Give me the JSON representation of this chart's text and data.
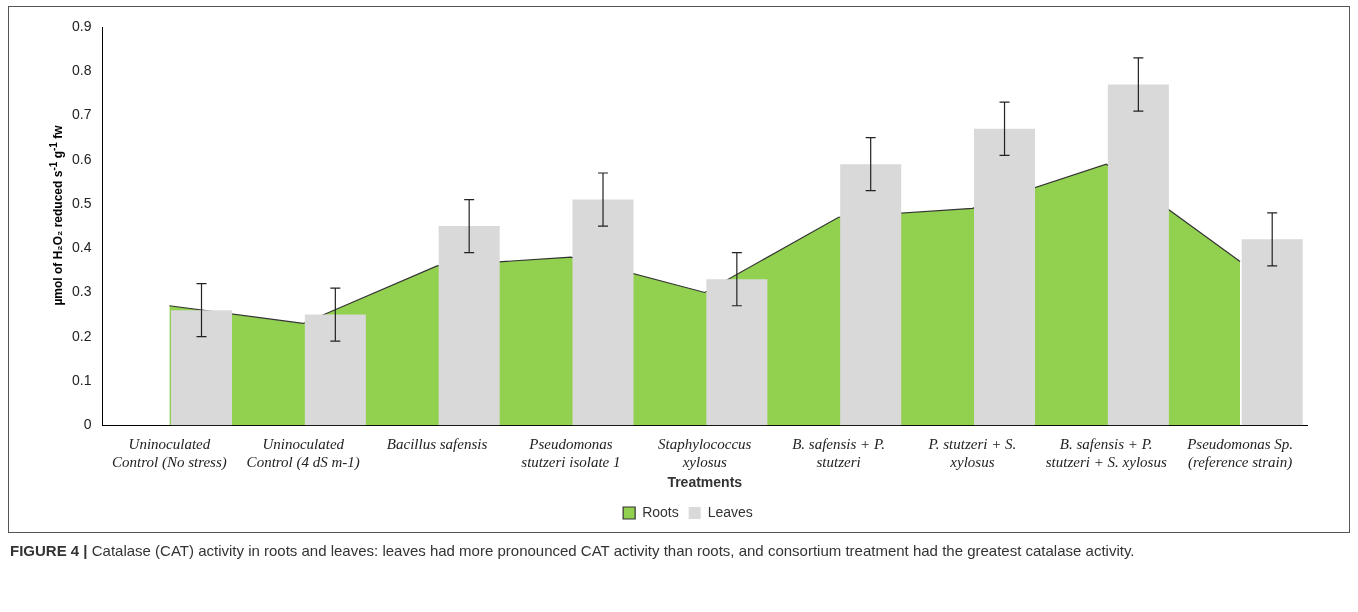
{
  "chart_data": {
    "type": "bar",
    "xlabel": "Treatments",
    "ylabel": "µmol of H₂O₂ reduced s$^{-1}$ g$^{-1}$ fw",
    "categories": [
      "Uninoculated Control (No stress)",
      "Uninoculated Control (4 dS m-1)",
      "Bacillus safensis",
      "Pseudomonas stutzeri isolate 1",
      "Staphylococcus xylosus",
      "B. safensis + P. stutzeri",
      "P. stutzeri + S. xylosus",
      "B. safensis + P. stutzeri + S. xylosus",
      "Pseudomonas Sp. (reference strain)"
    ],
    "series": [
      {
        "name": "Roots",
        "type": "area",
        "color": "#92d050",
        "values": [
          0.27,
          0.23,
          0.36,
          0.38,
          0.3,
          0.47,
          0.49,
          0.59,
          0.37
        ]
      },
      {
        "name": "Leaves",
        "color": "#d9d9d9",
        "values": [
          0.26,
          0.25,
          0.45,
          0.51,
          0.33,
          0.59,
          0.67,
          0.77,
          0.42
        ],
        "errors": [
          0.06,
          0.06,
          0.06,
          0.06,
          0.06,
          0.06,
          0.06,
          0.06,
          0.06
        ]
      }
    ],
    "ylim": [
      0,
      0.9
    ],
    "yticks": [
      0,
      0.1,
      0.2,
      0.3,
      0.4,
      0.5,
      0.6,
      0.7,
      0.8,
      0.9
    ],
    "grid": false,
    "legend": "bottom",
    "annotations": [
      "FIGURE 4 | Catalase (CAT) activity in roots and leaves: leaves had more pronounced CAT activity than roots, and consortium treatment had the greatest catalase activity."
    ]
  }
}
